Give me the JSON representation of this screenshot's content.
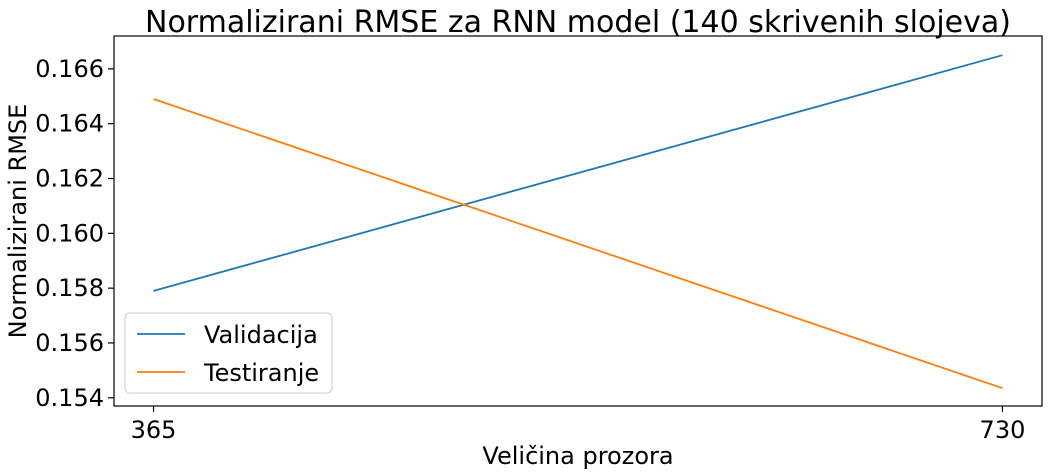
{
  "chart_data": {
    "type": "line",
    "title": "Normalizirani RMSE za RNN model (140 skrivenih slojeva)",
    "xlabel": "Veličina prozora",
    "ylabel": "Normalizirani RMSE",
    "x": [
      365,
      730
    ],
    "x_tick_labels": [
      "365",
      "730"
    ],
    "xlim": [
      348,
      747
    ],
    "ylim": [
      0.1537,
      0.1672
    ],
    "y_ticks": [
      0.154,
      0.156,
      0.158,
      0.16,
      0.162,
      0.164,
      0.166
    ],
    "y_tick_labels": [
      "0.154",
      "0.156",
      "0.158",
      "0.160",
      "0.162",
      "0.164",
      "0.166"
    ],
    "grid": false,
    "legend_position": "lower-left",
    "series": [
      {
        "name": "Validacija",
        "values": [
          0.1579,
          0.1665
        ],
        "color": "#1f77b4"
      },
      {
        "name": "Testiranje",
        "values": [
          0.1649,
          0.15435
        ],
        "color": "#ff7f0e"
      }
    ]
  }
}
